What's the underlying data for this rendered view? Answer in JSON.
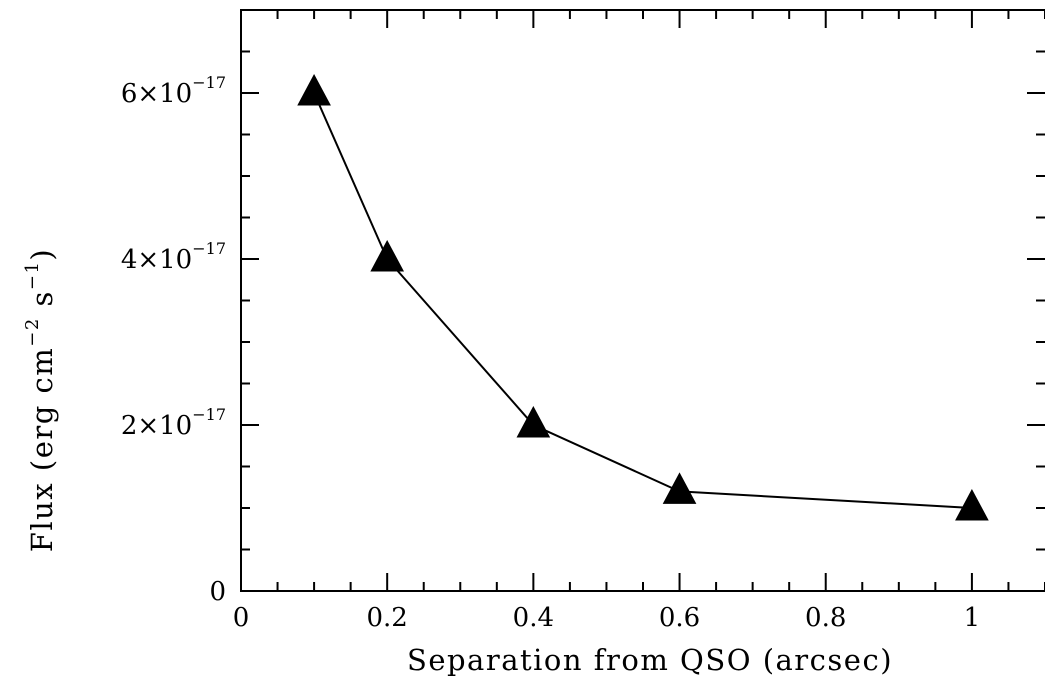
{
  "chart_data": {
    "type": "line",
    "marker": "triangle",
    "xlabel": "Separation from QSO (arcsec)",
    "ylabel": {
      "prefix": "Flux (erg cm",
      "exp1": "−2",
      "mid": " s",
      "exp2": "−1",
      "suffix": ")"
    },
    "xlim": [
      0,
      1.1
    ],
    "ylim": [
      0,
      7e-17
    ],
    "x_ticks": [
      {
        "value": 0,
        "label": "0"
      },
      {
        "value": 0.2,
        "label": "0.2"
      },
      {
        "value": 0.4,
        "label": "0.4"
      },
      {
        "value": 0.6,
        "label": "0.6"
      },
      {
        "value": 0.8,
        "label": "0.8"
      },
      {
        "value": 1.0,
        "label": "1"
      }
    ],
    "x_minor_step": 0.05,
    "y_ticks": [
      {
        "value": 0,
        "mantissa": "0",
        "exponent": ""
      },
      {
        "value": 2e-17,
        "mantissa": "2×10",
        "exponent": "−17"
      },
      {
        "value": 4e-17,
        "mantissa": "4×10",
        "exponent": "−17"
      },
      {
        "value": 6e-17,
        "mantissa": "6×10",
        "exponent": "−17"
      }
    ],
    "y_minor_step": 5e-18,
    "grid": false,
    "series": [
      {
        "x": [
          0.1,
          0.2,
          0.4,
          0.6,
          1.0
        ],
        "y": [
          6e-17,
          4e-17,
          2e-17,
          1.2e-17,
          1e-17
        ],
        "color": "#000000"
      }
    ]
  }
}
